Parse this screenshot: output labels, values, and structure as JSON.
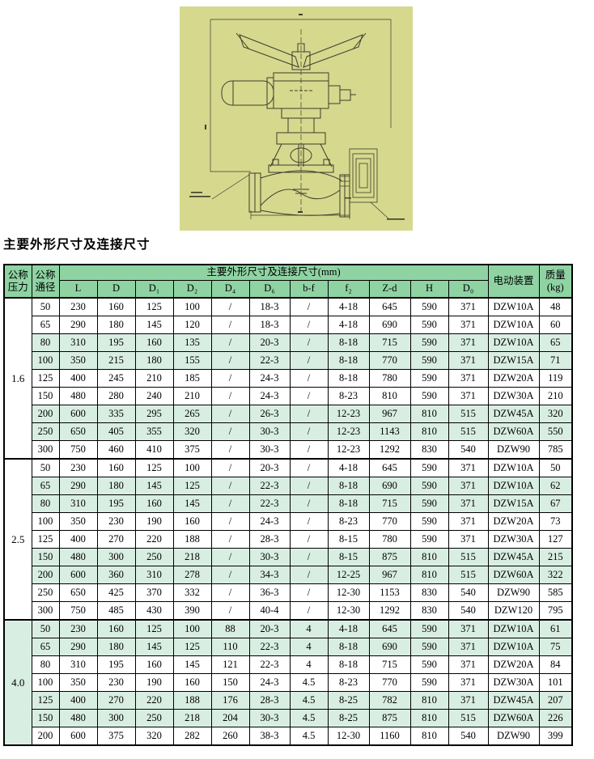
{
  "page": {
    "title": "主要外形尺寸及连接尺寸"
  },
  "colors": {
    "drawing_background": "#d6d88e",
    "header_green": "#8fd3a3",
    "row_tint_green": "#d9eee2",
    "border_black": "#000000"
  },
  "table": {
    "header": {
      "pressure_l1": "公称",
      "pressure_l2": "压力",
      "dn_l1": "公称",
      "dn_l2": "通径",
      "group": "主要外形尺寸及连接尺寸(mm)",
      "device": "电动装置",
      "mass_l1": "质量",
      "mass_l2": "(kg)",
      "dims": [
        "L",
        "D",
        "D₁",
        "D₂",
        "D₄",
        "D₆",
        "b-f",
        "f₂",
        "Z-d",
        "H",
        "D₀"
      ]
    },
    "sections": [
      {
        "pressure": "1.6",
        "rows": [
          {
            "dn": "50",
            "values": [
              "230",
              "160",
              "125",
              "100",
              "/",
              "18-3",
              "/",
              "4-18",
              "645",
              "590",
              "371"
            ],
            "device": "DZW10A",
            "mass": "48"
          },
          {
            "dn": "65",
            "values": [
              "290",
              "180",
              "145",
              "120",
              "/",
              "18-3",
              "/",
              "4-18",
              "690",
              "590",
              "371"
            ],
            "device": "DZW10A",
            "mass": "60"
          },
          {
            "dn": "80",
            "values": [
              "310",
              "195",
              "160",
              "135",
              "/",
              "20-3",
              "/",
              "8-18",
              "715",
              "590",
              "371"
            ],
            "device": "DZW10A",
            "mass": "65"
          },
          {
            "dn": "100",
            "values": [
              "350",
              "215",
              "180",
              "155",
              "/",
              "22-3",
              "/",
              "8-18",
              "770",
              "590",
              "371"
            ],
            "device": "DZW15A",
            "mass": "71"
          },
          {
            "dn": "125",
            "values": [
              "400",
              "245",
              "210",
              "185",
              "/",
              "24-3",
              "/",
              "8-18",
              "780",
              "590",
              "371"
            ],
            "device": "DZW20A",
            "mass": "119"
          },
          {
            "dn": "150",
            "values": [
              "480",
              "280",
              "240",
              "210",
              "/",
              "24-3",
              "/",
              "8-23",
              "810",
              "590",
              "371"
            ],
            "device": "DZW30A",
            "mass": "210"
          },
          {
            "dn": "200",
            "values": [
              "600",
              "335",
              "295",
              "265",
              "/",
              "26-3",
              "/",
              "12-23",
              "967",
              "810",
              "515"
            ],
            "device": "DZW45A",
            "mass": "320"
          },
          {
            "dn": "250",
            "values": [
              "650",
              "405",
              "355",
              "320",
              "/",
              "30-3",
              "/",
              "12-23",
              "1143",
              "810",
              "515"
            ],
            "device": "DZW60A",
            "mass": "550"
          },
          {
            "dn": "300",
            "values": [
              "750",
              "460",
              "410",
              "375",
              "/",
              "30-3",
              "/",
              "12-23",
              "1292",
              "830",
              "540"
            ],
            "device": "DZW90",
            "mass": "785"
          }
        ]
      },
      {
        "pressure": "2.5",
        "rows": [
          {
            "dn": "50",
            "values": [
              "230",
              "160",
              "125",
              "100",
              "/",
              "20-3",
              "/",
              "4-18",
              "645",
              "590",
              "371"
            ],
            "device": "DZW10A",
            "mass": "50"
          },
          {
            "dn": "65",
            "values": [
              "290",
              "180",
              "145",
              "125",
              "/",
              "22-3",
              "/",
              "8-18",
              "690",
              "590",
              "371"
            ],
            "device": "DZW10A",
            "mass": "62"
          },
          {
            "dn": "80",
            "values": [
              "310",
              "195",
              "160",
              "145",
              "/",
              "22-3",
              "/",
              "8-18",
              "715",
              "590",
              "371"
            ],
            "device": "DZW15A",
            "mass": "67"
          },
          {
            "dn": "100",
            "values": [
              "350",
              "230",
              "190",
              "160",
              "/",
              "24-3",
              "/",
              "8-23",
              "770",
              "590",
              "371"
            ],
            "device": "DZW20A",
            "mass": "73"
          },
          {
            "dn": "125",
            "values": [
              "400",
              "270",
              "220",
              "188",
              "/",
              "28-3",
              "/",
              "8-15",
              "780",
              "590",
              "371"
            ],
            "device": "DZW30A",
            "mass": "127"
          },
          {
            "dn": "150",
            "values": [
              "480",
              "300",
              "250",
              "218",
              "/",
              "30-3",
              "/",
              "8-15",
              "875",
              "810",
              "515"
            ],
            "device": "DZW45A",
            "mass": "215"
          },
          {
            "dn": "200",
            "values": [
              "600",
              "360",
              "310",
              "278",
              "/",
              "34-3",
              "/",
              "12-25",
              "967",
              "810",
              "515"
            ],
            "device": "DZW60A",
            "mass": "322"
          },
          {
            "dn": "250",
            "values": [
              "650",
              "425",
              "370",
              "332",
              "/",
              "36-3",
              "/",
              "12-30",
              "1153",
              "830",
              "540"
            ],
            "device": "DZW90",
            "mass": "585"
          },
          {
            "dn": "300",
            "values": [
              "750",
              "485",
              "430",
              "390",
              "/",
              "40-4",
              "/",
              "12-30",
              "1292",
              "830",
              "540"
            ],
            "device": "DZW120",
            "mass": "795"
          }
        ]
      },
      {
        "pressure": "4.0",
        "rows": [
          {
            "dn": "50",
            "values": [
              "230",
              "160",
              "125",
              "100",
              "88",
              "20-3",
              "4",
              "4-18",
              "645",
              "590",
              "371"
            ],
            "device": "DZW10A",
            "mass": "61"
          },
          {
            "dn": "65",
            "values": [
              "290",
              "180",
              "145",
              "125",
              "110",
              "22-3",
              "4",
              "8-18",
              "690",
              "590",
              "371"
            ],
            "device": "DZW10A",
            "mass": "75"
          },
          {
            "dn": "80",
            "values": [
              "310",
              "195",
              "160",
              "145",
              "121",
              "22-3",
              "4",
              "8-18",
              "715",
              "590",
              "371"
            ],
            "device": "DZW20A",
            "mass": "84"
          },
          {
            "dn": "100",
            "values": [
              "350",
              "230",
              "190",
              "160",
              "150",
              "24-3",
              "4.5",
              "8-23",
              "770",
              "590",
              "371"
            ],
            "device": "DZW30A",
            "mass": "101"
          },
          {
            "dn": "125",
            "values": [
              "400",
              "270",
              "220",
              "188",
              "176",
              "28-3",
              "4.5",
              "8-25",
              "782",
              "810",
              "371"
            ],
            "device": "DZW45A",
            "mass": "207"
          },
          {
            "dn": "150",
            "values": [
              "480",
              "300",
              "250",
              "218",
              "204",
              "30-3",
              "4.5",
              "8-25",
              "875",
              "810",
              "515"
            ],
            "device": "DZW60A",
            "mass": "226"
          },
          {
            "dn": "200",
            "values": [
              "600",
              "375",
              "320",
              "282",
              "260",
              "38-3",
              "4.5",
              "12-30",
              "1160",
              "810",
              "540"
            ],
            "device": "DZW90",
            "mass": "399"
          }
        ]
      }
    ]
  }
}
